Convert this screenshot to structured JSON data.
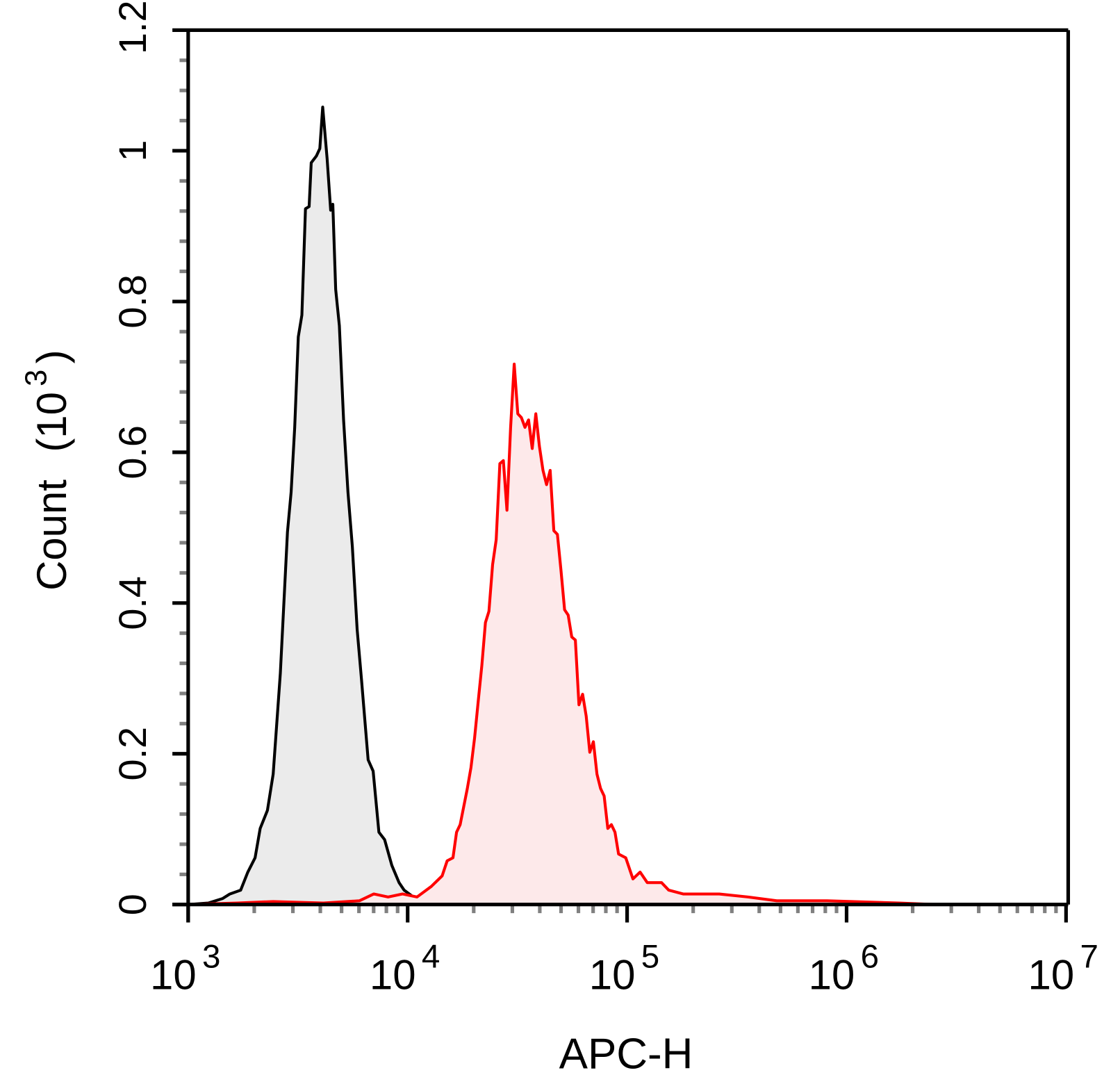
{
  "chart_data": {
    "type": "area",
    "xlabel": "APC-H",
    "ylabel": "Count",
    "ylabel_unit_base": "10",
    "ylabel_unit_exp": "3",
    "x_scale": "log",
    "xlim": [
      1000,
      10000000
    ],
    "ylim": [
      0,
      1.16
    ],
    "x_ticks": [
      {
        "base": "10",
        "exp": "3",
        "value": 1000
      },
      {
        "base": "10",
        "exp": "4",
        "value": 10000
      },
      {
        "base": "10",
        "exp": "5",
        "value": 100000
      },
      {
        "base": "10",
        "exp": "6",
        "value": 1000000
      },
      {
        "base": "10",
        "exp": "7",
        "value": 10000000
      }
    ],
    "y_ticks": [
      {
        "label": "0",
        "value": 0
      },
      {
        "label": "0.2",
        "value": 0.2
      },
      {
        "label": "0.4",
        "value": 0.4
      },
      {
        "label": "0.6",
        "value": 0.6
      },
      {
        "label": "0.8",
        "value": 0.8
      },
      {
        "label": "1",
        "value": 1.0
      },
      {
        "label": "1.2",
        "value": 1.2
      }
    ],
    "grid": false,
    "series": [
      {
        "color": "#000000",
        "fill": "#ebebeb",
        "x": [
          1000,
          1235,
          1437,
          1549,
          1734,
          1870,
          2017,
          2128,
          2296,
          2439,
          2630,
          2833,
          2944,
          3057,
          3175,
          3297,
          3423,
          3556,
          3637,
          3837,
          3981,
          4102,
          4297,
          4459,
          4560,
          4699,
          4884,
          5105,
          5345,
          5598,
          5888,
          6166,
          6607,
          6966,
          7396,
          7853,
          8472,
          9141,
          9638,
          10620,
          11890,
          12820
        ],
        "y": [
          0,
          0.002,
          0.008,
          0.014,
          0.019,
          0.043,
          0.062,
          0.101,
          0.125,
          0.173,
          0.307,
          0.494,
          0.547,
          0.633,
          0.753,
          0.782,
          0.923,
          0.926,
          0.984,
          0.993,
          1.003,
          1.058,
          0.989,
          0.921,
          0.929,
          0.816,
          0.768,
          0.643,
          0.547,
          0.475,
          0.365,
          0.298,
          0.192,
          0.177,
          0.096,
          0.086,
          0.052,
          0.029,
          0.019,
          0.01,
          0.002,
          0
        ]
      },
      {
        "color": "#ff0000",
        "fill": "#fde9ea",
        "x": [
          1000,
          1671,
          2439,
          4130,
          6026,
          7011,
          8147,
          9480,
          11030,
          12820,
          14360,
          15140,
          16090,
          16710,
          17350,
          18710,
          19430,
          20180,
          20960,
          21770,
          22610,
          23470,
          24380,
          25320,
          26300,
          27300,
          28350,
          29450,
          30580,
          31760,
          32980,
          34250,
          35570,
          36940,
          38360,
          39840,
          41370,
          42960,
          44620,
          46340,
          48120,
          49970,
          51890,
          53890,
          55960,
          58120,
          60350,
          62680,
          65090,
          67590,
          70190,
          72890,
          75700,
          78610,
          81640,
          84780,
          88040,
          91420,
          98590,
          106300,
          114600,
          123600,
          143600,
          154800,
          180100,
          263000,
          355700,
          480800,
          814700,
          1734000,
          2529000,
          10000000
        ],
        "y": [
          0,
          0.002,
          0.004,
          0.002,
          0.005,
          0.014,
          0.01,
          0.014,
          0.01,
          0.024,
          0.038,
          0.058,
          0.062,
          0.096,
          0.106,
          0.154,
          0.182,
          0.221,
          0.269,
          0.317,
          0.374,
          0.389,
          0.451,
          0.484,
          0.585,
          0.589,
          0.523,
          0.633,
          0.717,
          0.651,
          0.646,
          0.633,
          0.643,
          0.605,
          0.651,
          0.608,
          0.576,
          0.557,
          0.576,
          0.496,
          0.491,
          0.443,
          0.391,
          0.384,
          0.355,
          0.351,
          0.265,
          0.279,
          0.25,
          0.202,
          0.216,
          0.173,
          0.154,
          0.144,
          0.101,
          0.106,
          0.096,
          0.067,
          0.062,
          0.034,
          0.043,
          0.029,
          0.029,
          0.019,
          0.014,
          0.014,
          0.01,
          0.005,
          0.005,
          0.002,
          0,
          0
        ]
      }
    ]
  }
}
